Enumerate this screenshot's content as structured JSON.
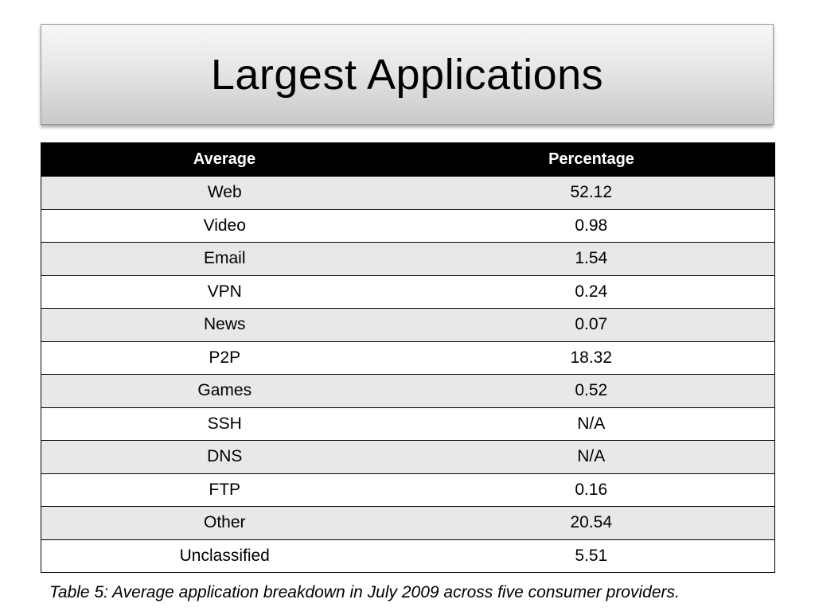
{
  "slide": {
    "title": "Largest Applications"
  },
  "table": {
    "headers": [
      "Average",
      "Percentage"
    ],
    "rows": [
      [
        "Web",
        "52.12"
      ],
      [
        "Video",
        "0.98"
      ],
      [
        "Email",
        "1.54"
      ],
      [
        "VPN",
        "0.24"
      ],
      [
        "News",
        "0.07"
      ],
      [
        "P2P",
        "18.32"
      ],
      [
        "Games",
        "0.52"
      ],
      [
        "SSH",
        "N/A"
      ],
      [
        "DNS",
        "N/A"
      ],
      [
        "FTP",
        "0.16"
      ],
      [
        "Other",
        "20.54"
      ],
      [
        "Unclassified",
        "5.51"
      ]
    ]
  },
  "caption": "Table 5: Average application breakdown in July 2009 across five consumer providers.",
  "colors": {
    "header_background": "#000000",
    "header_text": "#ffffff",
    "shaded_row": "#e8e8e8"
  }
}
